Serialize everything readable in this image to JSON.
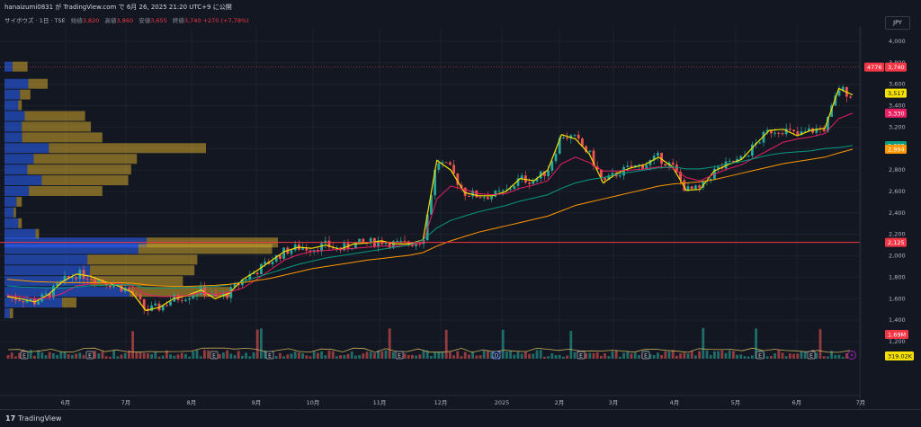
{
  "header": {
    "published": "hanaizumi0831 が TradingView.com で 6月 26, 2025 21:20 UTC+9 に公開"
  },
  "legend": {
    "symbol": "サイボウズ · 1日 · TSE",
    "open_label": "始値",
    "open": "3,820",
    "high_label": "高値",
    "high": "3,860",
    "low_label": "安値",
    "low": "3,655",
    "close_label": "終値",
    "close": "3,740",
    "change": "+270 (+7.78%)"
  },
  "currency": "JPY",
  "footer": {
    "logo_text": "TradingView",
    "logo_mark": "17"
  },
  "price_tags": {
    "countdown": "4776",
    "last": "3,740",
    "ma_yellow": "3,517",
    "ma_pink": "3,330",
    "ma_teal": "3,028",
    "ma_orange": "2,994",
    "hline": "2,125",
    "volume": "1.69M",
    "volume_ma": "319.02K"
  },
  "colors": {
    "background": "#131722",
    "up": "#26a69a",
    "down": "#ef5350",
    "ma_yellow": "#f5e000",
    "ma_pink": "#e91e63",
    "ma_teal": "#089981",
    "ma_orange": "#ff9800",
    "hline": "#f23645",
    "vp_blue": "#2962ff",
    "vp_gold": "#d4a72c"
  },
  "chart_data": {
    "type": "candlestick",
    "y_axis": {
      "ticks": [
        "4,000",
        "3,800",
        "3,600",
        "3,400",
        "3,200",
        "3,000",
        "2,800",
        "2,600",
        "2,400",
        "2,200",
        "2,000",
        "1,800",
        "1,600",
        "1,400",
        "1,200"
      ],
      "ylim": [
        1150,
        4100
      ]
    },
    "x_axis": {
      "ticks": [
        "6月",
        "7月",
        "8月",
        "9月",
        "10月",
        "11月",
        "12月",
        "2025",
        "2月",
        "3月",
        "4月",
        "5月",
        "6月",
        "7月"
      ]
    },
    "horizontal_line": 2125,
    "ma_yellow_values": [
      1620,
      1600,
      1570,
      1640,
      1760,
      1830,
      1810,
      1760,
      1720,
      1660,
      1490,
      1520,
      1600,
      1630,
      1680,
      1600,
      1650,
      1780,
      1860,
      1950,
      2040,
      2080,
      2070,
      2100,
      2060,
      2110,
      2120,
      2140,
      2110,
      2110,
      2150,
      2890,
      2800,
      2590,
      2560,
      2560,
      2600,
      2720,
      2700,
      2800,
      3130,
      3090,
      2950,
      2680,
      2770,
      2820,
      2850,
      2920,
      2830,
      2610,
      2620,
      2790,
      2850,
      2900,
      3040,
      3170,
      3180,
      3120,
      3170,
      3190,
      3560,
      3500
    ],
    "ma_pink_values": [
      1630,
      1620,
      1600,
      1610,
      1650,
      1720,
      1740,
      1750,
      1740,
      1720,
      1640,
      1620,
      1620,
      1630,
      1660,
      1640,
      1660,
      1700,
      1780,
      1870,
      1960,
      2010,
      2040,
      2050,
      2060,
      2070,
      2080,
      2090,
      2090,
      2100,
      2120,
      2530,
      2650,
      2620,
      2580,
      2570,
      2580,
      2630,
      2660,
      2700,
      2860,
      2920,
      2870,
      2790,
      2790,
      2800,
      2810,
      2830,
      2820,
      2730,
      2700,
      2760,
      2810,
      2850,
      2920,
      2990,
      3060,
      3090,
      3110,
      3140,
      3280,
      3330
    ],
    "ma_teal_values": [
      1720,
      1710,
      1705,
      1700,
      1700,
      1710,
      1720,
      1725,
      1730,
      1730,
      1700,
      1700,
      1700,
      1705,
      1710,
      1715,
      1730,
      1760,
      1800,
      1840,
      1880,
      1920,
      1950,
      1980,
      2000,
      2020,
      2040,
      2060,
      2080,
      2100,
      2150,
      2260,
      2330,
      2370,
      2410,
      2440,
      2470,
      2510,
      2540,
      2570,
      2630,
      2680,
      2710,
      2730,
      2760,
      2780,
      2800,
      2820,
      2830,
      2810,
      2810,
      2830,
      2860,
      2880,
      2910,
      2940,
      2960,
      2970,
      2980,
      3000,
      3010,
      3028
    ],
    "ma_orange_values": [
      1780,
      1770,
      1760,
      1755,
      1750,
      1750,
      1750,
      1750,
      1750,
      1745,
      1730,
      1720,
      1715,
      1715,
      1720,
      1725,
      1735,
      1750,
      1770,
      1790,
      1820,
      1850,
      1880,
      1900,
      1920,
      1940,
      1960,
      1975,
      1990,
      2005,
      2030,
      2090,
      2140,
      2180,
      2220,
      2250,
      2280,
      2310,
      2340,
      2370,
      2420,
      2470,
      2500,
      2530,
      2560,
      2590,
      2620,
      2650,
      2670,
      2680,
      2690,
      2710,
      2740,
      2770,
      2800,
      2830,
      2860,
      2880,
      2900,
      2920,
      2960,
      2994
    ],
    "volume_profile": [
      {
        "price": 3760,
        "total": 0.8,
        "up_share": 0.35
      },
      {
        "price": 3600,
        "total": 1.5,
        "up_share": 0.55
      },
      {
        "price": 3500,
        "total": 0.9,
        "up_share": 0.6
      },
      {
        "price": 3400,
        "total": 0.6,
        "up_share": 0.8
      },
      {
        "price": 3300,
        "total": 2.8,
        "up_share": 0.25
      },
      {
        "price": 3200,
        "total": 3.0,
        "up_share": 0.2
      },
      {
        "price": 3100,
        "total": 3.4,
        "up_share": 0.18
      },
      {
        "price": 3000,
        "total": 7.0,
        "up_share": 0.22
      },
      {
        "price": 2900,
        "total": 4.6,
        "up_share": 0.22
      },
      {
        "price": 2800,
        "total": 4.4,
        "up_share": 0.18
      },
      {
        "price": 2700,
        "total": 4.3,
        "up_share": 0.3
      },
      {
        "price": 2600,
        "total": 3.4,
        "up_share": 0.25
      },
      {
        "price": 2500,
        "total": 0.6,
        "up_share": 0.7
      },
      {
        "price": 2400,
        "total": 0.4,
        "up_share": 0.8
      },
      {
        "price": 2300,
        "total": 0.6,
        "up_share": 0.8
      },
      {
        "price": 2200,
        "total": 1.2,
        "up_share": 0.9
      },
      {
        "price": 2120,
        "total": 9.5,
        "up_share": 0.52
      },
      {
        "price": 2060,
        "total": 9.3,
        "up_share": 0.5
      },
      {
        "price": 1960,
        "total": 6.7,
        "up_share": 0.43
      },
      {
        "price": 1860,
        "total": 6.6,
        "up_share": 0.45
      },
      {
        "price": 1760,
        "total": 6.2,
        "up_share": 0.48
      },
      {
        "price": 1660,
        "total": 7.9,
        "up_share": 0.55
      },
      {
        "price": 1560,
        "total": 2.5,
        "up_share": 0.8
      },
      {
        "price": 1460,
        "total": 0.3,
        "up_share": 0.6
      }
    ],
    "events": [
      "E",
      "E",
      "E",
      "E",
      "E",
      "E",
      "E",
      "E",
      "E",
      "E"
    ],
    "dividend_marker": "D"
  }
}
